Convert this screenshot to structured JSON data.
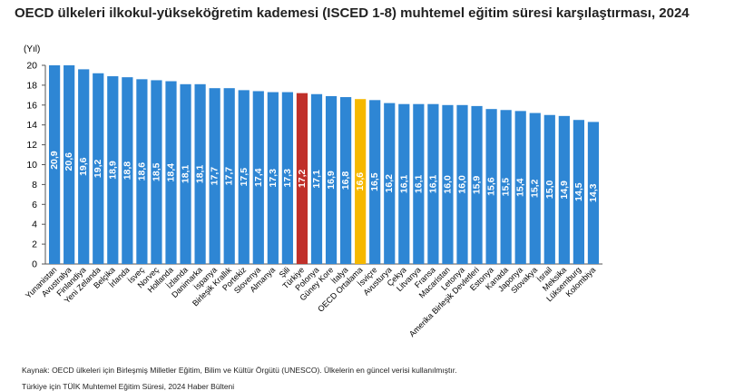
{
  "title": "OECD ülkeleri ilkokul-yükseköğretim kademesi (ISCED 1-8) muhtemel eğitim süresi karşılaştırması, 2024",
  "notes": {
    "source": "Kaynak: OECD ülkeleri için Birleşmiş Milletler Eğitim, Bilim ve Kültür Örgütü (UNESCO). Ülkelerin en güncel verisi kullanılmıştır.",
    "turkey": "Türkiye için TÜİK Muhtemel Eğitim Süresi, 2024 Haber Bülteni"
  },
  "colors": {
    "default_bar": "#2e86d4",
    "highlight_turkey": "#c0302a",
    "highlight_oecd": "#f5b800",
    "label_text": "#ffffff",
    "axis": "#555555"
  },
  "chart_data": {
    "type": "bar",
    "title": "OECD ülkeleri ilkokul-yükseköğretim kademesi (ISCED 1-8) muhtemel eğitim süresi karşılaştırması, 2024",
    "ylabel": "(Yıl)",
    "xlabel": "",
    "ylim": [
      0,
      20
    ],
    "yticks": [
      0,
      2,
      4,
      6,
      8,
      10,
      12,
      14,
      16,
      18,
      20
    ],
    "grid": false,
    "categories": [
      "Yunanistan",
      "Avustralya",
      "Finlandiya",
      "Yeni Zelanda",
      "Belçika",
      "İrlanda",
      "İsveç",
      "Norveç",
      "Hollanda",
      "İzlanda",
      "Danimarka",
      "İspanya",
      "Birleşik Krallık",
      "Portekiz",
      "Slovenya",
      "Almanya",
      "Şili",
      "Türkiye",
      "Polonya",
      "Güney Kore",
      "İtalya",
      "OECD Ortalama",
      "İsviçre",
      "Avusturya",
      "Çekya",
      "Litvanya",
      "Fransa",
      "Macaristan",
      "Letonya",
      "Amerika Birleşik Devletleri",
      "Estonya",
      "Kanada",
      "Japonya",
      "Slovakya",
      "İsrail",
      "Meksika",
      "Lüksemburg",
      "Kolombiya"
    ],
    "values": [
      20.9,
      20.6,
      19.6,
      19.2,
      18.9,
      18.8,
      18.6,
      18.5,
      18.4,
      18.1,
      18.1,
      17.7,
      17.7,
      17.5,
      17.4,
      17.3,
      17.3,
      17.2,
      17.1,
      16.9,
      16.8,
      16.6,
      16.5,
      16.2,
      16.1,
      16.1,
      16.1,
      16.0,
      16.0,
      15.9,
      15.6,
      15.5,
      15.4,
      15.2,
      15.0,
      14.9,
      14.5,
      14.3
    ],
    "value_labels": [
      "20,9",
      "20,6",
      "19,6",
      "19,2",
      "18,9",
      "18,8",
      "18,6",
      "18,5",
      "18,4",
      "18,1",
      "18,1",
      "17,7",
      "17,7",
      "17,5",
      "17,4",
      "17,3",
      "17,3",
      "17,2",
      "17,1",
      "16,9",
      "16,8",
      "16,6",
      "16,5",
      "16,2",
      "16,1",
      "16,1",
      "16,1",
      "16,0",
      "16,0",
      "15,9",
      "15,6",
      "15,5",
      "15,4",
      "15,2",
      "15,0",
      "14,9",
      "14,5",
      "14,3"
    ],
    "highlights": {
      "Türkiye": "highlight_turkey",
      "OECD Ortalama": "highlight_oecd"
    }
  }
}
